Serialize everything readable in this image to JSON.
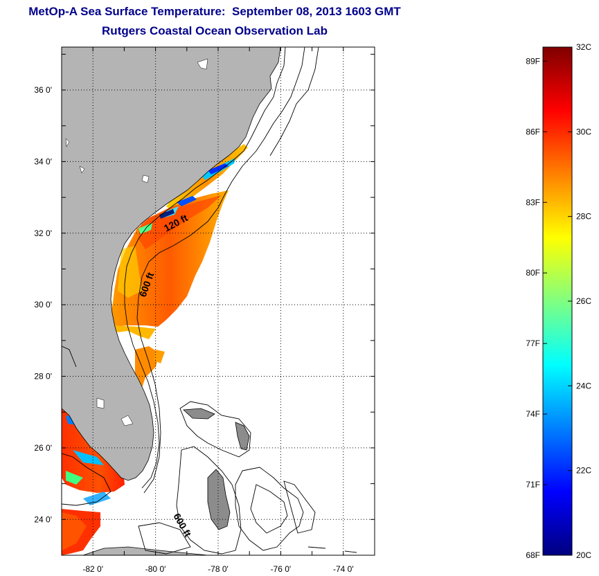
{
  "title": {
    "line1": "MetOp-A Sea Surface Temperature:  September 08, 2013 1603 GMT",
    "line2": "Rutgers Coastal Ocean Observation Lab"
  },
  "map": {
    "lon_range": [
      -83,
      -73
    ],
    "lat_range": [
      23,
      37.2
    ],
    "lon_ticks": [
      {
        "value": -82,
        "label": "-82 0'"
      },
      {
        "value": -80,
        "label": "-80 0'"
      },
      {
        "value": -78,
        "label": "-78 0'"
      },
      {
        "value": -76,
        "label": "-76 0'"
      },
      {
        "value": -74,
        "label": "-74 0'"
      }
    ],
    "lat_ticks": [
      {
        "value": 24,
        "label": "24 0'"
      },
      {
        "value": 26,
        "label": "26 0'"
      },
      {
        "value": 28,
        "label": "28 0'"
      },
      {
        "value": 30,
        "label": "30 0'"
      },
      {
        "value": 32,
        "label": "32 0'"
      },
      {
        "value": 34,
        "label": "34 0'"
      },
      {
        "value": 36,
        "label": "36 0'"
      }
    ],
    "grid": "dotted",
    "land_color": "#b4b4b4",
    "contour_labels": {
      "c120": "120 ft",
      "c600a": "600 ft",
      "c600b": "600 ft"
    }
  },
  "colorbar": {
    "colors": [
      "#00007f",
      "#0000ff",
      "#0080ff",
      "#00ffff",
      "#80ff80",
      "#ffff00",
      "#ff8000",
      "#ff0000",
      "#7f0000"
    ],
    "f_labels": [
      {
        "value": 89,
        "label": "89F"
      },
      {
        "value": 86,
        "label": "86F"
      },
      {
        "value": 83,
        "label": "83F"
      },
      {
        "value": 80,
        "label": "80F"
      },
      {
        "value": 77,
        "label": "77F"
      },
      {
        "value": 74,
        "label": "74F"
      },
      {
        "value": 71,
        "label": "71F"
      },
      {
        "value": 68,
        "label": "68F"
      }
    ],
    "c_labels": [
      {
        "value": 32,
        "label": "32C"
      },
      {
        "value": 30,
        "label": "30C"
      },
      {
        "value": 28,
        "label": "28C"
      },
      {
        "value": 26,
        "label": "26C"
      },
      {
        "value": 24,
        "label": "24C"
      },
      {
        "value": 22,
        "label": "22C"
      },
      {
        "value": 20,
        "label": "20C"
      }
    ]
  }
}
